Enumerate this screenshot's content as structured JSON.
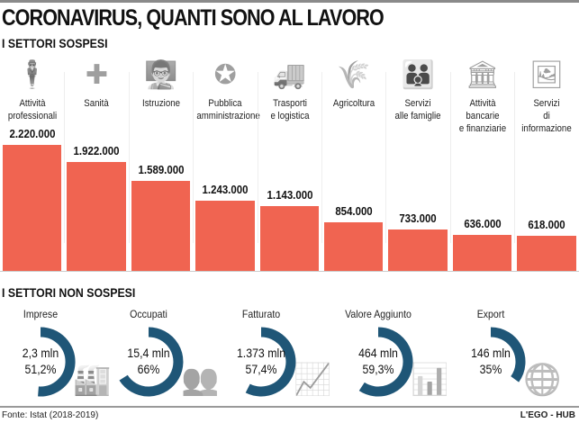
{
  "title": "CORONAVIRUS, QUANTI SONO AL LAVORO",
  "section1": "I SETTORI SOSPESI",
  "section2": "I SETTORI NON SOSPESI",
  "source": "Fonte: Istat (2018-2019)",
  "credit": "L'EGO - HUB",
  "colors": {
    "bar": "#f06451",
    "donut": "#1f5677",
    "icon": "#8a8a8a"
  },
  "chart_data": [
    {
      "type": "bar",
      "title": "I SETTORI SOSPESI",
      "categories": [
        "Attività professionali",
        "Sanità",
        "Istruzione",
        "Pubblica amministrazione",
        "Trasporti e logistica",
        "Agricoltura",
        "Servizi alle famiglie",
        "Attività bancarie e finanziarie",
        "Servizi di informazione"
      ],
      "labels": [
        [
          "Attività",
          "professionali"
        ],
        [
          "Sanità",
          ""
        ],
        [
          "Istruzione",
          ""
        ],
        [
          "Pubblica",
          "amministrazione"
        ],
        [
          "Trasporti",
          "e logistica"
        ],
        [
          "Agricoltura",
          ""
        ],
        [
          "Servizi",
          "alle famiglie"
        ],
        [
          "Attività bancarie",
          "e finanziarie"
        ],
        [
          "Servizi",
          "di informazione"
        ]
      ],
      "icons": [
        "businessman-icon",
        "health-cross-icon",
        "teacher-icon",
        "emblem-icon",
        "truck-icon",
        "wheat-icon",
        "family-icon",
        "bank-icon",
        "news-icon"
      ],
      "values": [
        2220000,
        1922000,
        1589000,
        1243000,
        1143000,
        854000,
        733000,
        636000,
        618000
      ],
      "value_labels": [
        "2.220.000",
        "1.922.000",
        "1.589.000",
        "1.243.000",
        "1.143.000",
        "854.000",
        "733.000",
        "636.000",
        "618.000"
      ]
    },
    {
      "type": "pie",
      "title": "I SETTORI NON SOSPESI",
      "items": [
        {
          "label": "Imprese",
          "amount": "2,3 mln",
          "pct_label": "51,2%",
          "pct": 51.2,
          "icon": "factory-icon"
        },
        {
          "label": "Occupati",
          "amount": "15,4 mln",
          "pct_label": "66%",
          "pct": 66,
          "icon": "people-icon"
        },
        {
          "label": "Fatturato",
          "amount": "1.373 mln",
          "pct_label": "57,4%",
          "pct": 57.4,
          "icon": "growth-icon"
        },
        {
          "label": "Valore Aggiunto",
          "amount": "464 mln",
          "pct_label": "59,3%",
          "pct": 59.3,
          "icon": "bar-growth-icon"
        },
        {
          "label": "Export",
          "amount": "146 mln",
          "pct_label": "35%",
          "pct": 35,
          "icon": "globe-download-icon"
        }
      ]
    }
  ]
}
